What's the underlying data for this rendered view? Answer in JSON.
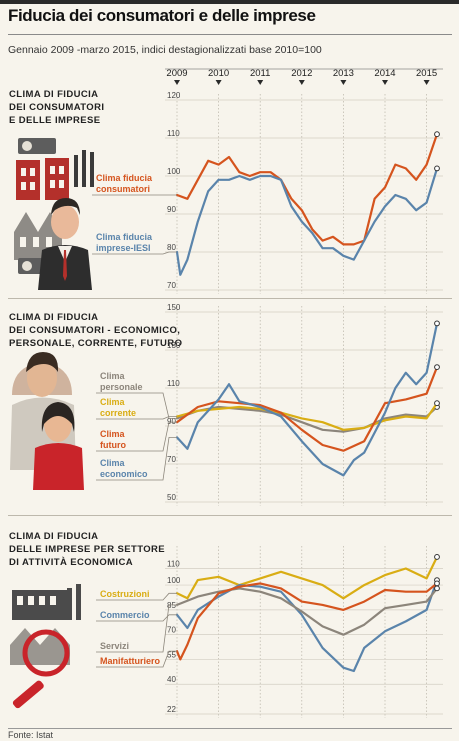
{
  "title": "Fiducia dei consumatori e delle imprese",
  "subtitle": "Gennaio 2009 -marzo 2015, indici destagionalizzati base 2010=100",
  "source": "Fonte: Istat",
  "colors": {
    "orange": "#d5541e",
    "blue": "#5a84ab",
    "yellow": "#d9ad14",
    "gray": "#8c857b",
    "red": "#c62026"
  },
  "years": [
    "2009",
    "2010",
    "2011",
    "2012",
    "2013",
    "2014",
    "2015"
  ],
  "chart_data": [
    {
      "type": "line",
      "title": "CLIMA DI FIDUCIA DEI CONSUMATORI E DELLE IMPRESE",
      "title_lines": [
        "CLIMA DI FIDUCIA",
        "DEI CONSUMATORI",
        "E DELLE IMPRESE"
      ],
      "x_range": [
        "2009-01",
        "2015-03"
      ],
      "ylim": [
        70,
        120
      ],
      "yticks": [
        70,
        80,
        90,
        100,
        110,
        120
      ],
      "series": [
        {
          "name": "Clima fiducia consumatori",
          "label_lines": [
            "Clima fiducia",
            "consumatori"
          ],
          "color": "orange",
          "points": [
            [
              2009.0,
              95
            ],
            [
              2009.25,
              94
            ],
            [
              2009.5,
              99
            ],
            [
              2009.75,
              104
            ],
            [
              2010.0,
              103
            ],
            [
              2010.25,
              105
            ],
            [
              2010.5,
              101
            ],
            [
              2010.75,
              100
            ],
            [
              2011.0,
              101
            ],
            [
              2011.25,
              101
            ],
            [
              2011.5,
              99
            ],
            [
              2011.75,
              94
            ],
            [
              2012.0,
              91
            ],
            [
              2012.25,
              86
            ],
            [
              2012.5,
              83
            ],
            [
              2012.75,
              84
            ],
            [
              2013.0,
              82
            ],
            [
              2013.25,
              82
            ],
            [
              2013.5,
              83
            ],
            [
              2013.75,
              94
            ],
            [
              2014.0,
              97
            ],
            [
              2014.25,
              103
            ],
            [
              2014.5,
              102
            ],
            [
              2014.75,
              99
            ],
            [
              2015.0,
              103
            ],
            [
              2015.25,
              111
            ]
          ]
        },
        {
          "name": "Clima fiducia imprese-IESI",
          "label_lines": [
            "Clima fiducia",
            "imprese-IESI"
          ],
          "color": "blue",
          "points": [
            [
              2009.0,
              80
            ],
            [
              2009.08,
              74
            ],
            [
              2009.25,
              78
            ],
            [
              2009.5,
              88
            ],
            [
              2009.75,
              96
            ],
            [
              2010.0,
              99
            ],
            [
              2010.25,
              99
            ],
            [
              2010.5,
              100
            ],
            [
              2010.75,
              99
            ],
            [
              2011.0,
              100
            ],
            [
              2011.25,
              100
            ],
            [
              2011.5,
              99
            ],
            [
              2011.75,
              92
            ],
            [
              2012.0,
              88
            ],
            [
              2012.25,
              85
            ],
            [
              2012.5,
              81
            ],
            [
              2012.75,
              81
            ],
            [
              2013.0,
              79
            ],
            [
              2013.25,
              78
            ],
            [
              2013.5,
              83
            ],
            [
              2013.75,
              88
            ],
            [
              2014.0,
              92
            ],
            [
              2014.25,
              95
            ],
            [
              2014.5,
              94
            ],
            [
              2014.75,
              91
            ],
            [
              2015.0,
              93
            ],
            [
              2015.25,
              102
            ]
          ]
        }
      ]
    },
    {
      "type": "line",
      "title": "CLIMA DI FIDUCIA DEI CONSUMATORI - ECONOMICO, PERSONALE, CORRENTE, FUTURO",
      "title_lines": [
        "CLIMA DI FIDUCIA",
        "DEI CONSUMATORI - ECONOMICO,",
        "PERSONALE, CORRENTE, FUTURO"
      ],
      "x_range": [
        "2009-01",
        "2015-03"
      ],
      "ylim": [
        50,
        150
      ],
      "yticks": [
        50,
        70,
        90,
        110,
        130,
        150
      ],
      "series": [
        {
          "name": "Clima personale",
          "label_lines": [
            "Clima",
            "personale"
          ],
          "color": "gray",
          "points": [
            [
              2009.0,
              94
            ],
            [
              2009.5,
              98
            ],
            [
              2010.0,
              100
            ],
            [
              2010.5,
              99
            ],
            [
              2011.0,
              98
            ],
            [
              2011.5,
              96
            ],
            [
              2012.0,
              92
            ],
            [
              2012.5,
              88
            ],
            [
              2013.0,
              87
            ],
            [
              2013.5,
              89
            ],
            [
              2014.0,
              94
            ],
            [
              2014.5,
              96
            ],
            [
              2015.0,
              95
            ],
            [
              2015.25,
              100
            ]
          ]
        },
        {
          "name": "Clima corrente",
          "label_lines": [
            "Clima",
            "corrente"
          ],
          "color": "yellow",
          "points": [
            [
              2009.0,
              95
            ],
            [
              2009.5,
              98
            ],
            [
              2010.0,
              99
            ],
            [
              2010.5,
              100
            ],
            [
              2011.0,
              99
            ],
            [
              2011.5,
              97
            ],
            [
              2012.0,
              94
            ],
            [
              2012.5,
              92
            ],
            [
              2013.0,
              88
            ],
            [
              2013.5,
              89
            ],
            [
              2014.0,
              93
            ],
            [
              2014.5,
              95
            ],
            [
              2015.0,
              94
            ],
            [
              2015.25,
              102
            ]
          ]
        },
        {
          "name": "Clima futuro",
          "label_lines": [
            "Clima",
            "futuro"
          ],
          "color": "orange",
          "points": [
            [
              2009.0,
              92
            ],
            [
              2009.5,
              100
            ],
            [
              2010.0,
              103
            ],
            [
              2010.5,
              102
            ],
            [
              2011.0,
              101
            ],
            [
              2011.5,
              97
            ],
            [
              2012.0,
              88
            ],
            [
              2012.5,
              80
            ],
            [
              2013.0,
              77
            ],
            [
              2013.5,
              82
            ],
            [
              2014.0,
              102
            ],
            [
              2014.5,
              104
            ],
            [
              2015.0,
              107
            ],
            [
              2015.25,
              121
            ]
          ]
        },
        {
          "name": "Clima economico",
          "label_lines": [
            "Clima",
            "economico"
          ],
          "color": "blue",
          "points": [
            [
              2009.0,
              84
            ],
            [
              2009.25,
              78
            ],
            [
              2009.5,
              92
            ],
            [
              2010.0,
              104
            ],
            [
              2010.25,
              112
            ],
            [
              2010.5,
              103
            ],
            [
              2011.0,
              100
            ],
            [
              2011.5,
              95
            ],
            [
              2012.0,
              82
            ],
            [
              2012.5,
              70
            ],
            [
              2013.0,
              64
            ],
            [
              2013.25,
              72
            ],
            [
              2013.5,
              76
            ],
            [
              2014.0,
              97
            ],
            [
              2014.25,
              110
            ],
            [
              2014.5,
              118
            ],
            [
              2014.75,
              112
            ],
            [
              2015.0,
              118
            ],
            [
              2015.25,
              144
            ]
          ]
        }
      ]
    },
    {
      "type": "line",
      "title": "CLIMA DI FIDUCIA DELLE IMPRESE PER SETTORE DI ATTIVITÀ ECONOMICA",
      "title_lines": [
        "CLIMA DI FIDUCIA",
        "DELLE IMPRESE PER SETTORE",
        "DI ATTIVITÀ ECONOMICA"
      ],
      "x_range": [
        "2009-01",
        "2015-03"
      ],
      "ylim": [
        22,
        120
      ],
      "yticks": [
        22,
        40,
        55,
        70,
        85,
        100,
        110
      ],
      "series": [
        {
          "name": "Costruzioni",
          "label_lines": [
            "Costruzioni"
          ],
          "color": "yellow",
          "points": [
            [
              2009.0,
              95
            ],
            [
              2009.25,
              92
            ],
            [
              2009.5,
              103
            ],
            [
              2010.0,
              105
            ],
            [
              2010.5,
              100
            ],
            [
              2011.0,
              104
            ],
            [
              2011.5,
              108
            ],
            [
              2012.0,
              104
            ],
            [
              2012.5,
              100
            ],
            [
              2013.0,
              92
            ],
            [
              2013.5,
              100
            ],
            [
              2014.0,
              106
            ],
            [
              2014.5,
              110
            ],
            [
              2015.0,
              104
            ],
            [
              2015.25,
              117
            ]
          ]
        },
        {
          "name": "Commercio",
          "label_lines": [
            "Commercio"
          ],
          "color": "blue",
          "points": [
            [
              2009.0,
              82
            ],
            [
              2009.25,
              74
            ],
            [
              2009.5,
              85
            ],
            [
              2010.0,
              93
            ],
            [
              2010.5,
              100
            ],
            [
              2011.0,
              99
            ],
            [
              2011.5,
              96
            ],
            [
              2012.0,
              82
            ],
            [
              2012.5,
              62
            ],
            [
              2013.0,
              50
            ],
            [
              2013.25,
              48
            ],
            [
              2013.5,
              62
            ],
            [
              2014.0,
              72
            ],
            [
              2014.5,
              78
            ],
            [
              2015.0,
              85
            ],
            [
              2015.25,
              103
            ]
          ]
        },
        {
          "name": "Servizi",
          "label_lines": [
            "Servizi"
          ],
          "color": "gray",
          "points": [
            [
              2009.0,
              88
            ],
            [
              2009.5,
              93
            ],
            [
              2010.0,
              96
            ],
            [
              2010.5,
              98
            ],
            [
              2011.0,
              96
            ],
            [
              2011.5,
              92
            ],
            [
              2012.0,
              84
            ],
            [
              2012.5,
              75
            ],
            [
              2013.0,
              70
            ],
            [
              2013.5,
              76
            ],
            [
              2014.0,
              86
            ],
            [
              2014.5,
              88
            ],
            [
              2015.0,
              90
            ],
            [
              2015.25,
              98
            ]
          ]
        },
        {
          "name": "Manifatturiero",
          "label_lines": [
            "Manifatturiero"
          ],
          "color": "orange",
          "points": [
            [
              2009.0,
              60
            ],
            [
              2009.08,
              55
            ],
            [
              2009.25,
              64
            ],
            [
              2009.5,
              80
            ],
            [
              2010.0,
              95
            ],
            [
              2010.5,
              99
            ],
            [
              2011.0,
              101
            ],
            [
              2011.5,
              98
            ],
            [
              2012.0,
              90
            ],
            [
              2012.5,
              88
            ],
            [
              2013.0,
              85
            ],
            [
              2013.5,
              90
            ],
            [
              2014.0,
              97
            ],
            [
              2014.5,
              96
            ],
            [
              2015.0,
              96
            ],
            [
              2015.25,
              101
            ]
          ]
        }
      ]
    }
  ]
}
